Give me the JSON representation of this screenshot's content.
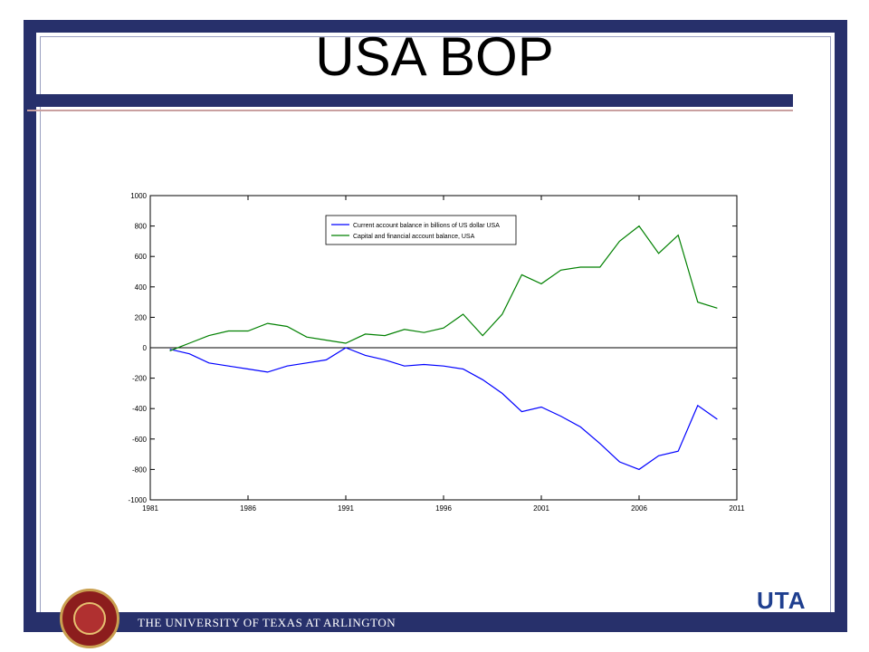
{
  "slide": {
    "title": "USA BOP",
    "footer": "THE UNIVERSITY OF TEXAS AT ARLINGTON",
    "logo_text": "UTA"
  },
  "colors": {
    "frame": "#27306b",
    "current_account": "#0000ff",
    "capital_financial": "#008000"
  },
  "chart_data": {
    "type": "line",
    "title": "",
    "xlabel": "",
    "ylabel": "",
    "xlim": [
      1981,
      2011
    ],
    "ylim": [
      -1000,
      1000
    ],
    "xticks": [
      1981,
      1986,
      1991,
      1996,
      2001,
      2006,
      2011
    ],
    "xtick_labels": [
      "1981",
      "1986",
      "1991",
      "1996",
      "2001",
      "2006",
      "2011"
    ],
    "yticks": [
      -1000,
      -800,
      -600,
      -400,
      -200,
      0,
      200,
      400,
      600,
      800,
      1000
    ],
    "ytick_labels": [
      "-1000",
      "-800",
      "-600",
      "-400",
      "-200",
      "0",
      "200",
      "400",
      "600",
      "800",
      "1000"
    ],
    "grid": false,
    "legend_position": "top-right",
    "zero_line": true,
    "series": [
      {
        "name": "Current account balance in billions of US dollar USA",
        "color": "#0000ff",
        "x": [
          1982,
          1983,
          1984,
          1985,
          1986,
          1987,
          1988,
          1989,
          1990,
          1991,
          1992,
          1993,
          1994,
          1995,
          1996,
          1997,
          1998,
          1999,
          2000,
          2001,
          2002,
          2003,
          2004,
          2005,
          2006,
          2007,
          2008,
          2009,
          2010
        ],
        "values": [
          -10,
          -40,
          -100,
          -120,
          -140,
          -160,
          -120,
          -100,
          -80,
          0,
          -50,
          -80,
          -120,
          -110,
          -120,
          -140,
          -210,
          -300,
          -420,
          -390,
          -450,
          -520,
          -630,
          -750,
          -800,
          -710,
          -680,
          -380,
          -470
        ]
      },
      {
        "name": "Capital and financial account balance, USA",
        "color": "#008000",
        "x": [
          1982,
          1983,
          1984,
          1985,
          1986,
          1987,
          1988,
          1989,
          1990,
          1991,
          1992,
          1993,
          1994,
          1995,
          1996,
          1997,
          1998,
          1999,
          2000,
          2001,
          2002,
          2003,
          2004,
          2005,
          2006,
          2007,
          2008,
          2009,
          2010
        ],
        "values": [
          -20,
          30,
          80,
          110,
          110,
          160,
          140,
          70,
          50,
          30,
          90,
          80,
          120,
          100,
          130,
          220,
          80,
          220,
          480,
          420,
          510,
          530,
          530,
          700,
          800,
          620,
          740,
          300,
          260
        ]
      }
    ]
  }
}
